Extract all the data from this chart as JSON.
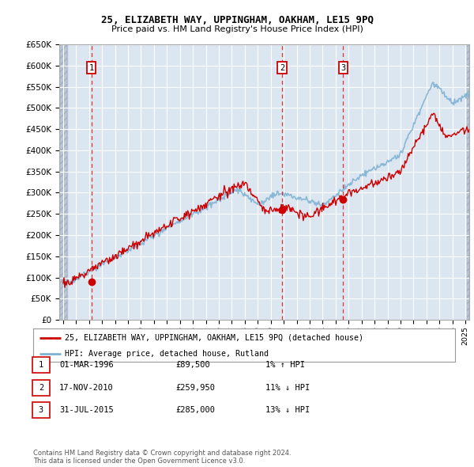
{
  "title1": "25, ELIZABETH WAY, UPPINGHAM, OAKHAM, LE15 9PQ",
  "title2": "Price paid vs. HM Land Registry's House Price Index (HPI)",
  "ylim": [
    0,
    650000
  ],
  "yticks": [
    0,
    50000,
    100000,
    150000,
    200000,
    250000,
    300000,
    350000,
    400000,
    450000,
    500000,
    550000,
    600000,
    650000
  ],
  "xlim_start": 1993.7,
  "xlim_end": 2025.3,
  "background_color": "#ffffff",
  "plot_bg_color": "#dce6f1",
  "grid_color": "#ffffff",
  "hatch_color": "#b8c5d6",
  "sale_dates": [
    1996.17,
    2010.88,
    2015.58
  ],
  "sale_prices": [
    89500,
    259950,
    285000
  ],
  "sale_labels": [
    "1",
    "2",
    "3"
  ],
  "legend_line1": "25, ELIZABETH WAY, UPPINGHAM, OAKHAM, LE15 9PQ (detached house)",
  "legend_line2": "HPI: Average price, detached house, Rutland",
  "table_rows": [
    [
      "1",
      "01-MAR-1996",
      "£89,500",
      "1% ↑ HPI"
    ],
    [
      "2",
      "17-NOV-2010",
      "£259,950",
      "11% ↓ HPI"
    ],
    [
      "3",
      "31-JUL-2015",
      "£285,000",
      "13% ↓ HPI"
    ]
  ],
  "footer": "Contains HM Land Registry data © Crown copyright and database right 2024.\nThis data is licensed under the Open Government Licence v3.0.",
  "red_line_color": "#cc0000",
  "blue_line_color": "#7fb3d3",
  "dot_color": "#cc0000",
  "dashed_line_color": "#dd4444"
}
